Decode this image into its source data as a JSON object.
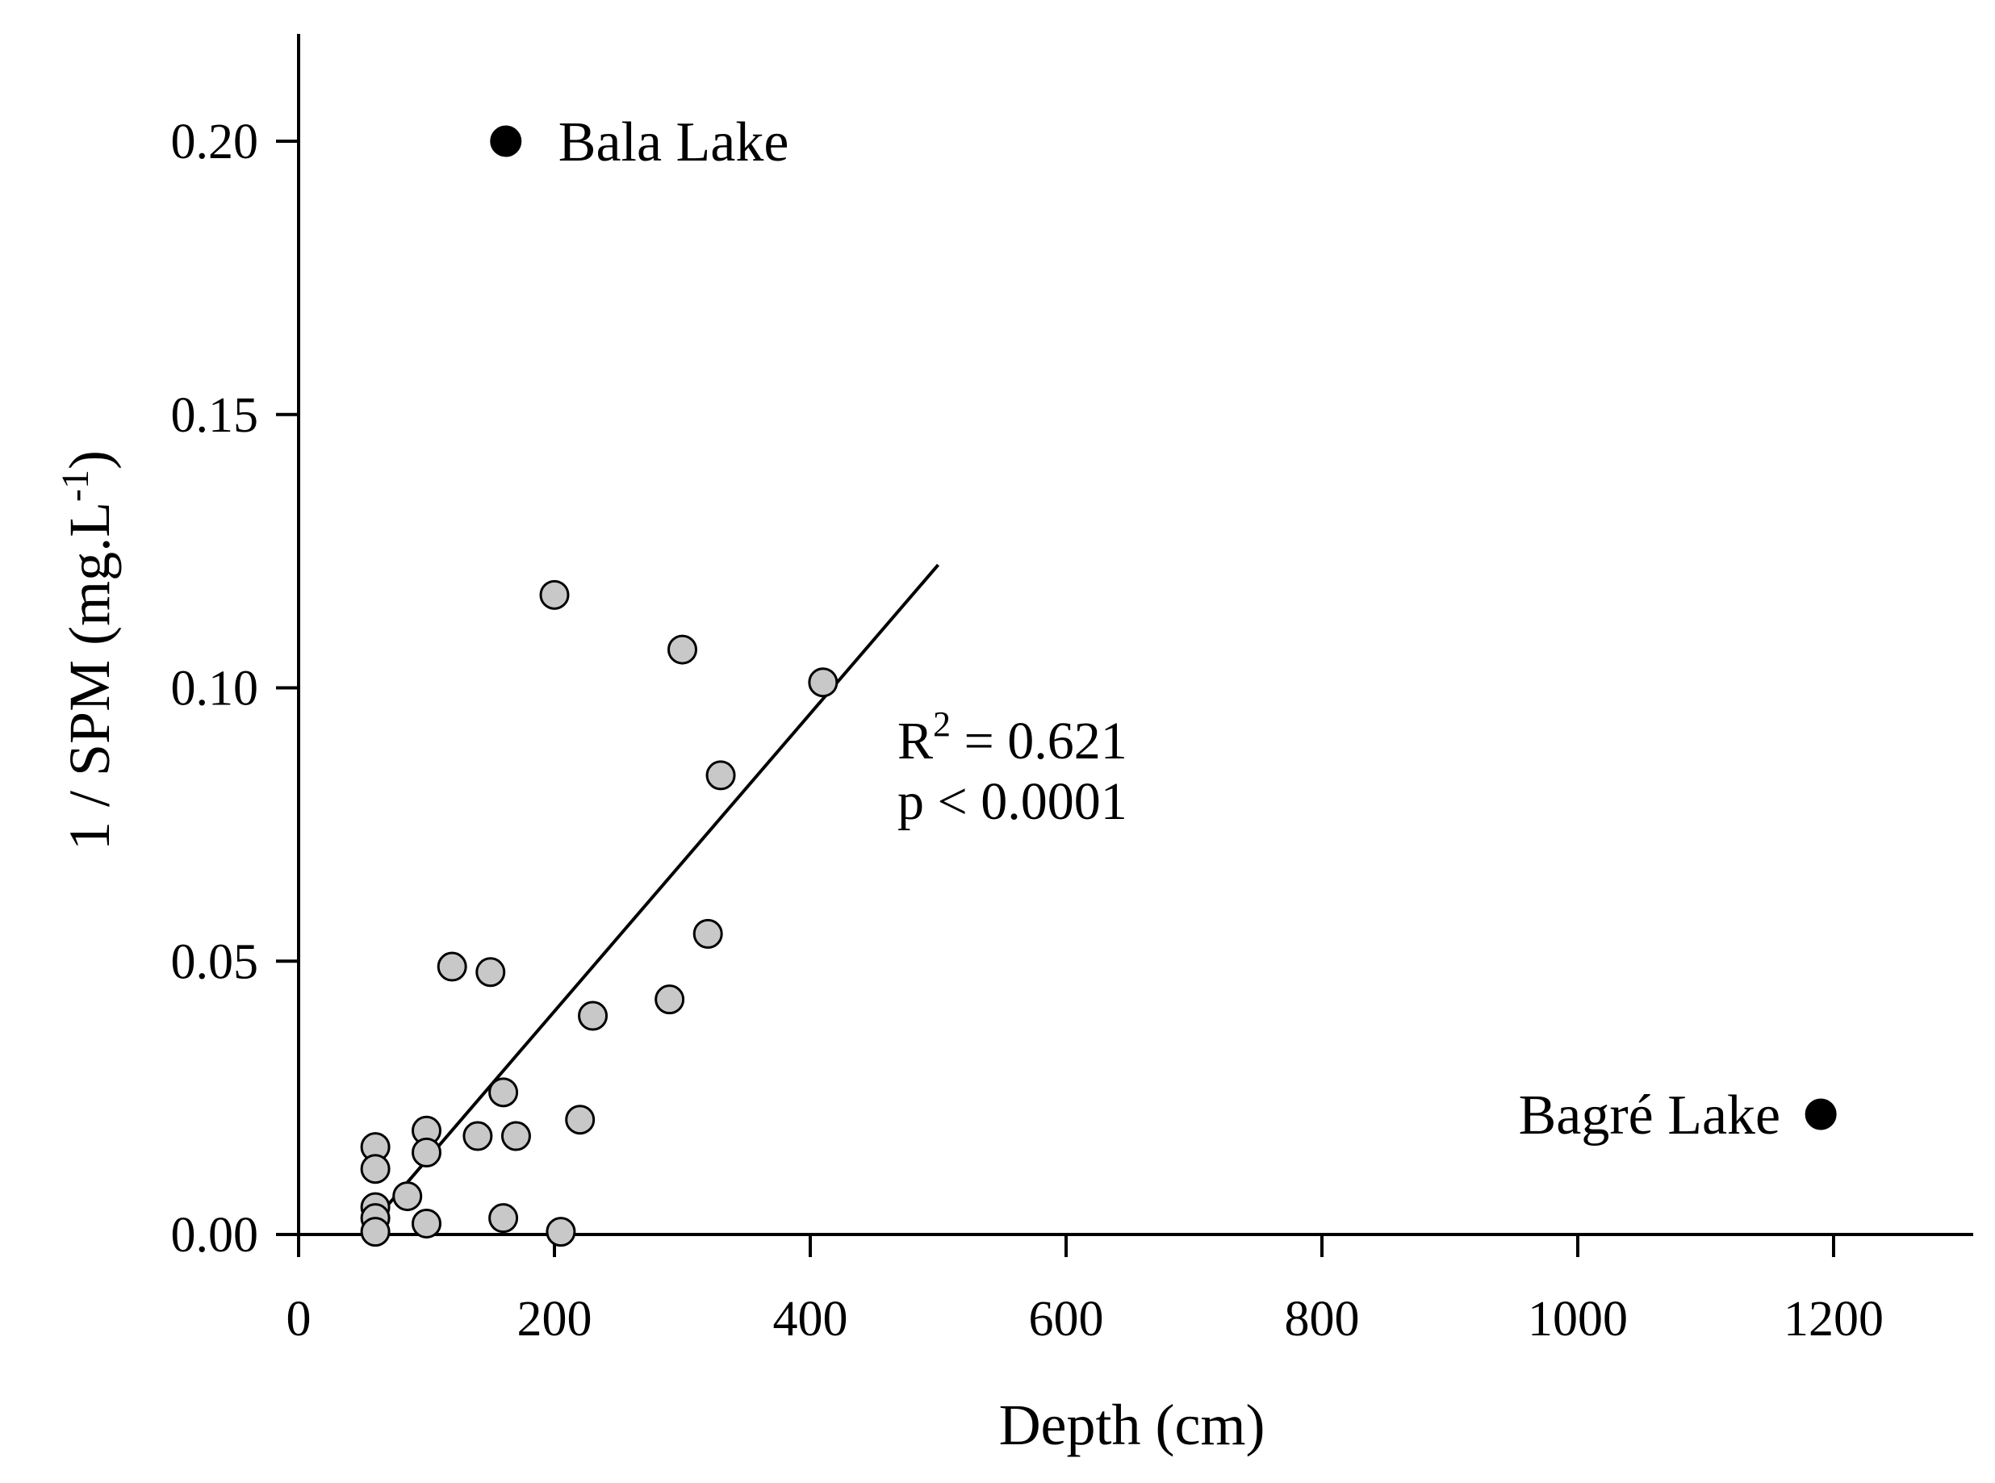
{
  "chart_data": {
    "type": "scatter",
    "title": "",
    "xlabel": "Depth (cm)",
    "ylabel_main": "1 / SPM (mg.L",
    "ylabel_sup": "-1",
    "ylabel_close": ")",
    "xlim": [
      0,
      1300
    ],
    "ylim": [
      0,
      0.22
    ],
    "x_ticks": [
      0,
      200,
      400,
      600,
      800,
      1000,
      1200
    ],
    "x_tick_labels": [
      "0",
      "200",
      "400",
      "600",
      "800",
      "1000",
      "1200"
    ],
    "y_ticks": [
      0,
      0.05,
      0.1,
      0.15,
      0.2
    ],
    "y_tick_labels": [
      "0.00",
      "0.05",
      "0.10",
      "0.15",
      "0.20"
    ],
    "grid": false,
    "series": [
      {
        "color": "#c8c8c8",
        "edge_color": "#000000",
        "points": [
          {
            "x": 200,
            "y": 0.117
          },
          {
            "x": 300,
            "y": 0.107
          },
          {
            "x": 410,
            "y": 0.101
          },
          {
            "x": 330,
            "y": 0.084
          },
          {
            "x": 320,
            "y": 0.055
          },
          {
            "x": 120,
            "y": 0.049
          },
          {
            "x": 150,
            "y": 0.048
          },
          {
            "x": 290,
            "y": 0.043
          },
          {
            "x": 230,
            "y": 0.04
          },
          {
            "x": 160,
            "y": 0.026
          },
          {
            "x": 220,
            "y": 0.021
          },
          {
            "x": 100,
            "y": 0.019
          },
          {
            "x": 140,
            "y": 0.018
          },
          {
            "x": 170,
            "y": 0.018
          },
          {
            "x": 60,
            "y": 0.016
          },
          {
            "x": 100,
            "y": 0.015
          },
          {
            "x": 60,
            "y": 0.012
          },
          {
            "x": 85,
            "y": 0.007
          },
          {
            "x": 60,
            "y": 0.005
          },
          {
            "x": 60,
            "y": 0.003
          },
          {
            "x": 100,
            "y": 0.002
          },
          {
            "x": 160,
            "y": 0.003
          },
          {
            "x": 205,
            "y": 0.0005
          },
          {
            "x": 60,
            "y": 0.0005
          }
        ]
      },
      {
        "color": "#000000",
        "edge_color": "#000000",
        "points": [
          {
            "x": 162,
            "y": 0.2,
            "label": "Bala Lake"
          },
          {
            "x": 1190,
            "y": 0.022,
            "label": "Bagré Lake"
          }
        ]
      }
    ],
    "regression_line": {
      "x": [
        50,
        500
      ],
      "y": [
        0.0,
        0.1225
      ]
    },
    "annotation": {
      "r_symbol": "R",
      "r_exp": "2",
      "r_value": " = 0.621",
      "p_text": "p < 0.0001"
    }
  }
}
